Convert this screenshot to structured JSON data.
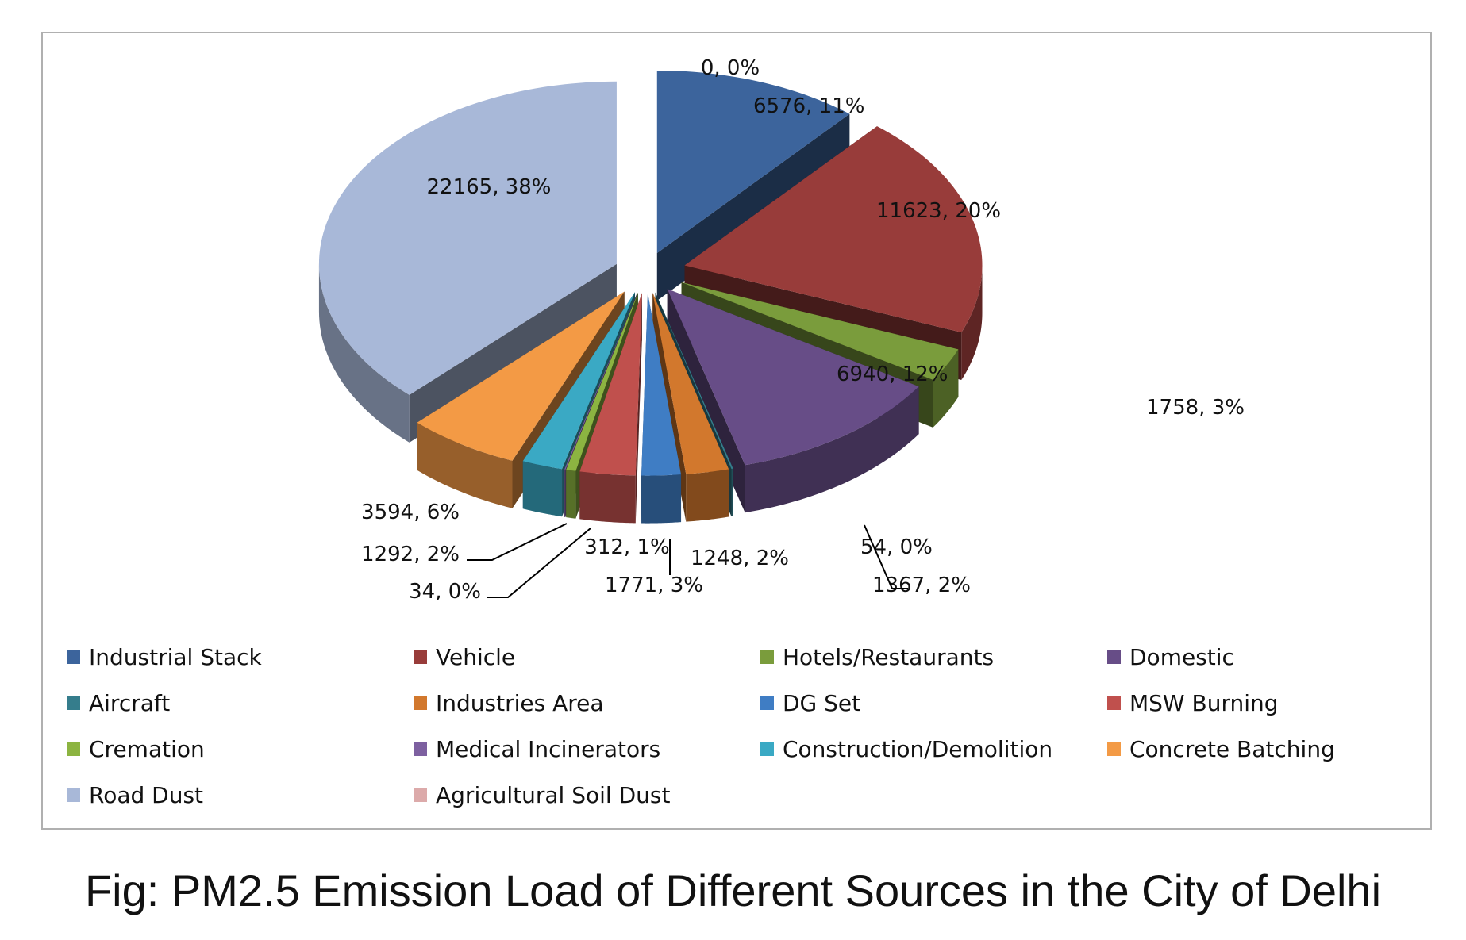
{
  "caption": "Fig: PM2.5 Emission Load of Different Sources in the City of Delhi",
  "chart_data": {
    "type": "pie",
    "variant": "3d-exploded",
    "title": "",
    "legend_position": "bottom",
    "categories": [
      "Industrial Stack",
      "Vehicle",
      "Hotels/Restaurants",
      "Domestic",
      "Aircraft",
      "Industries Area",
      "DG Set",
      "MSW Burning",
      "Cremation",
      "Medical Incinerators",
      "Construction/Demolition",
      "Concrete Batching",
      "Road Dust",
      "Agricultural Soil Dust"
    ],
    "values": [
      6576,
      11623,
      1758,
      6940,
      54,
      1367,
      1248,
      1771,
      312,
      34,
      1292,
      3594,
      22165,
      0
    ],
    "data_labels": [
      "6576, 11%",
      "11623, 20%",
      "1758, 3%",
      "6940, 12%",
      "54, 0%",
      "1367, 2%",
      "1248, 2%",
      "1771, 3%",
      "312, 1%",
      "34, 0%",
      "1292, 2%",
      "3594, 6%",
      "22165, 38%",
      "0, 0%"
    ],
    "colors": [
      "#3c649c",
      "#983c3a",
      "#7a9c3c",
      "#674d87",
      "#357d8c",
      "#d2782d",
      "#3f7dc4",
      "#c0504d",
      "#8cb441",
      "#7d60a0",
      "#3aa9c4",
      "#f39a45",
      "#a8b8d8",
      "#dcaaaa"
    ]
  }
}
